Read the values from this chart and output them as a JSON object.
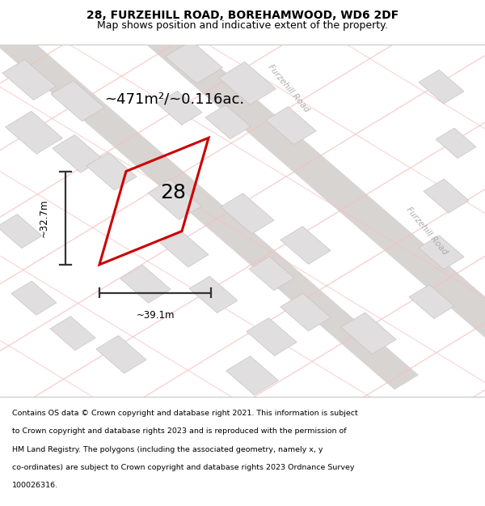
{
  "title": "28, FURZEHILL ROAD, BOREHAMWOOD, WD6 2DF",
  "subtitle": "Map shows position and indicative extent of the property.",
  "footer_line1": "Contains OS data © Crown copyright and database right 2021. This information is subject",
  "footer_line2": "to Crown copyright and database rights 2023 and is reproduced with the permission of",
  "footer_line3": "HM Land Registry. The polygons (including the associated geometry, namely x, y",
  "footer_line4": "co-ordinates) are subject to Crown copyright and database rights 2023 Ordnance Survey",
  "footer_line5": "100026316.",
  "area_label": "~471m²/~0.116ac.",
  "number_label": "28",
  "dim_width_label": "~39.1m",
  "dim_height_label": "~32.7m",
  "map_bg": "#eeecea",
  "building_fill": "#e0dede",
  "building_edge": "#c8c4c4",
  "road_line_color": "#f5c0c0",
  "road_band_color": "#d8d4d2",
  "plot_color": "#cc0000",
  "dim_color": "#333333",
  "street_label_color": "#b0acac",
  "title_fontsize": 10,
  "subtitle_fontsize": 9,
  "footer_fontsize": 6.8,
  "area_fontsize": 13,
  "number_fontsize": 18,
  "dim_fontsize": 8.5
}
